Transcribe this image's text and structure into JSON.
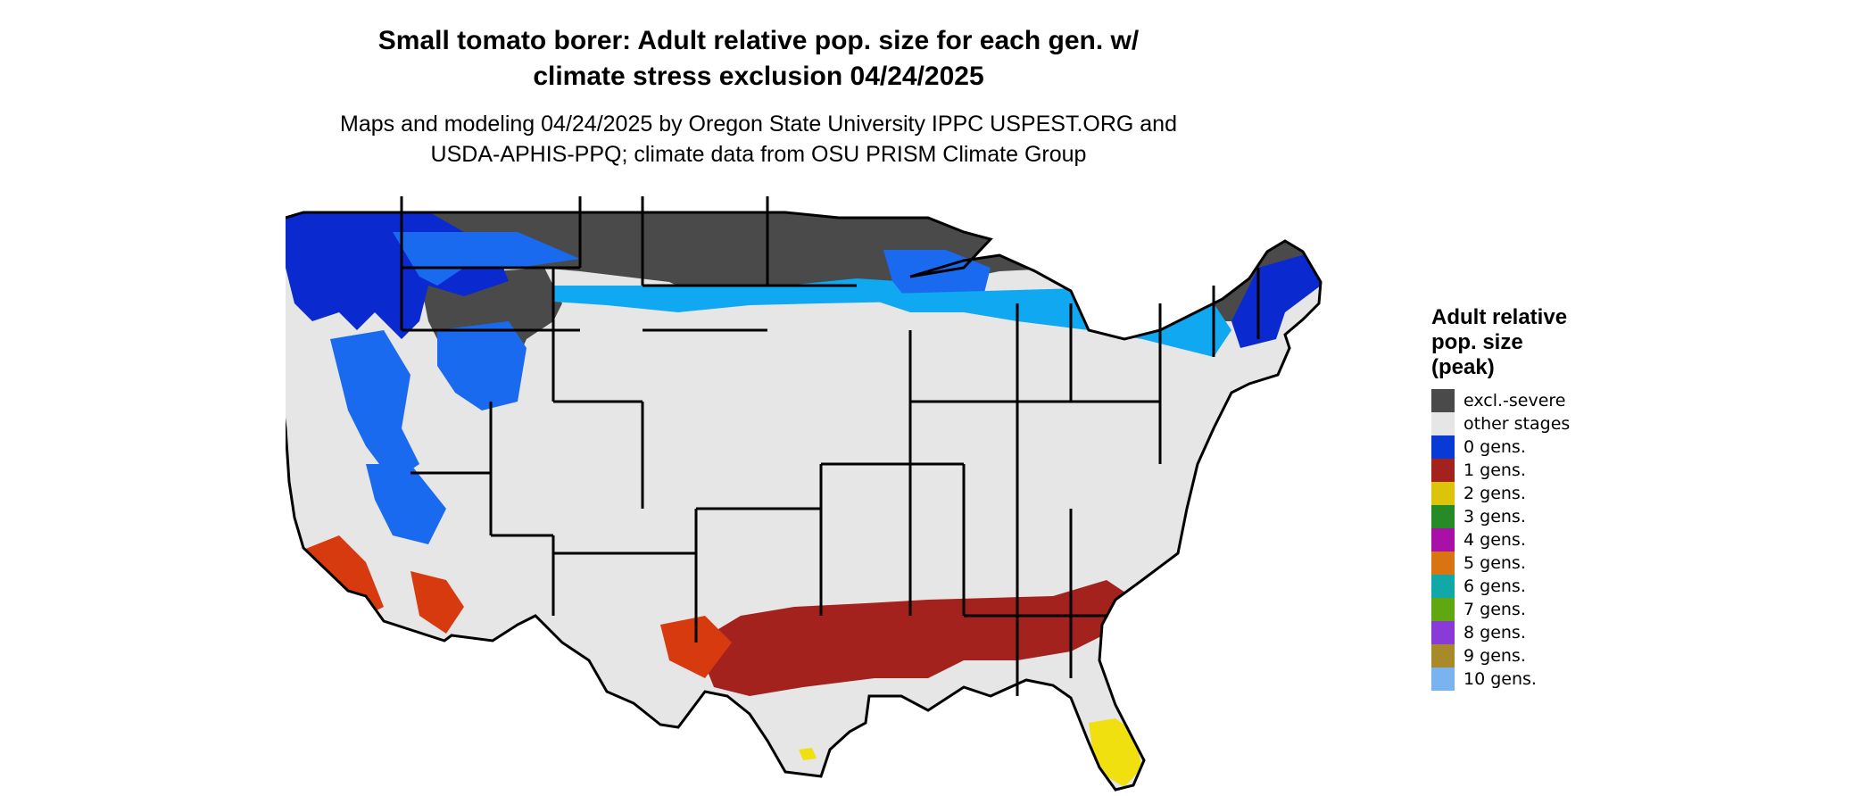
{
  "title": {
    "line1": "Small tomato borer: Adult relative pop. size for each gen. w/",
    "line2": "climate stress exclusion 04/24/2025"
  },
  "subtitle": {
    "line1": "Maps and modeling 04/24/2025 by Oregon State University IPPC USPEST.ORG and",
    "line2": "USDA-APHIS-PPQ; climate data from OSU PRISM Climate Group"
  },
  "legend": {
    "title_lines": [
      "Adult relative",
      "pop. size",
      "(peak)"
    ],
    "items": [
      {
        "label": "excl.-severe",
        "color": "#4a4a4a"
      },
      {
        "label": "other stages",
        "color": "#e6e6e6"
      },
      {
        "label": "0 gens.",
        "color": "#0a3ad6"
      },
      {
        "label": "1 gens.",
        "color": "#a3221d"
      },
      {
        "label": "2 gens.",
        "color": "#dcc40a"
      },
      {
        "label": "3 gens.",
        "color": "#268a26"
      },
      {
        "label": "4 gens.",
        "color": "#a810a8"
      },
      {
        "label": "5 gens.",
        "color": "#d87412"
      },
      {
        "label": "6 gens.",
        "color": "#12a8a8"
      },
      {
        "label": "7 gens.",
        "color": "#5fa812"
      },
      {
        "label": "8 gens.",
        "color": "#8a3ad6"
      },
      {
        "label": "9 gens.",
        "color": "#a88a2a"
      },
      {
        "label": "10 gens.",
        "color": "#7ab4f0"
      }
    ]
  },
  "map_colors": {
    "severe": "#4a4a4a",
    "other": "#e6e6e6",
    "gen0_dark": "#0a2ad0",
    "gen0_mid": "#1a6af0",
    "gen0_light": "#10a8f0",
    "gen1_dark": "#a3221d",
    "gen1_orange": "#d83a10",
    "gen2": "#f0e010",
    "border": "#000000"
  }
}
